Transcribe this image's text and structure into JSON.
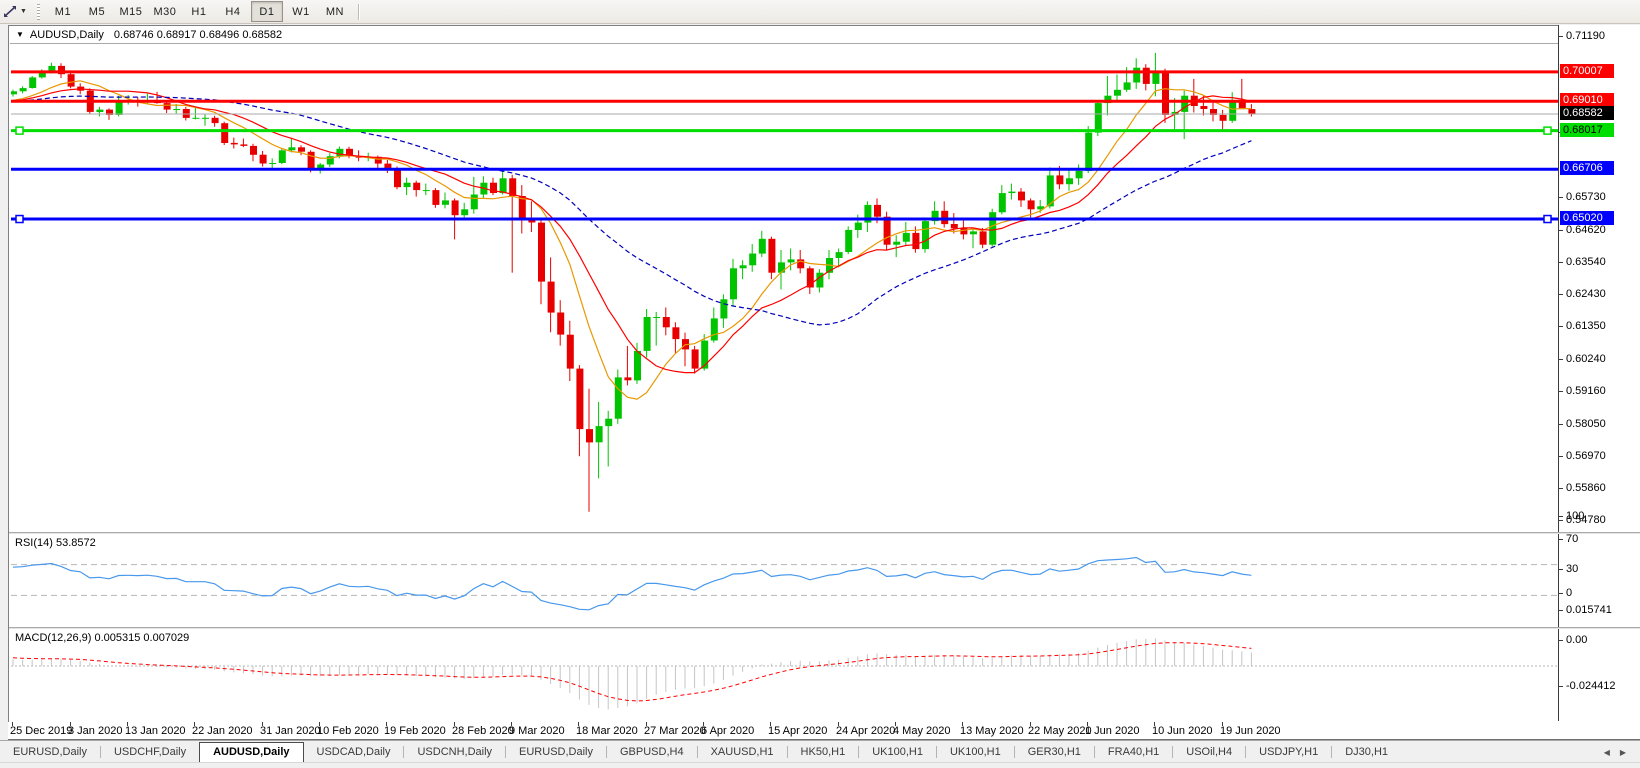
{
  "toolbar": {
    "timeframes": [
      "M1",
      "M5",
      "M15",
      "M30",
      "H1",
      "H4",
      "D1",
      "W1",
      "MN"
    ],
    "active_timeframe": "D1"
  },
  "chart": {
    "title": "AUDUSD,Daily",
    "ohlc": "0.68746 0.68917 0.68496 0.68582"
  },
  "price_axis": {
    "ticks": [
      0.7119,
      0.6792,
      0.6573,
      0.6462,
      0.6354,
      0.6243,
      0.6135,
      0.6024,
      0.5916,
      0.5805,
      0.5697,
      0.5586,
      0.5478
    ],
    "current_price": {
      "label": "0.68582",
      "value": 0.68582,
      "bg": "#000000",
      "fg": "#ffffff"
    }
  },
  "hlines": [
    {
      "label": "0.70007",
      "value": 0.70007,
      "color": "#ff0000",
      "text": "#ffffff",
      "selected": false
    },
    {
      "label": "0.69010",
      "value": 0.6901,
      "color": "#ff0000",
      "text": "#ffffff",
      "selected": false
    },
    {
      "label": "0.68017",
      "value": 0.68017,
      "color": "#00dd00",
      "text": "#000000",
      "selected": true
    },
    {
      "label": "0.66706",
      "value": 0.66706,
      "color": "#0000ff",
      "text": "#ffffff",
      "selected": false
    },
    {
      "label": "0.65020",
      "value": 0.6502,
      "color": "#0000ff",
      "text": "#ffffff",
      "selected": true
    }
  ],
  "current_price_line_color": "#aaaaaa",
  "chart_data": {
    "type": "candlestick",
    "symbol": "AUDUSD",
    "timeframe": "Daily",
    "up_color": "#00c400",
    "down_color": "#e80000",
    "x_ticks": [
      [
        "25 Dec 2019",
        0
      ],
      [
        "3 Jan 2020",
        6
      ],
      [
        "13 Jan 2020",
        12
      ],
      [
        "22 Jan 2020",
        19
      ],
      [
        "31 Jan 2020",
        26
      ],
      [
        "10 Feb 2020",
        32
      ],
      [
        "19 Feb 2020",
        39
      ],
      [
        "28 Feb 2020",
        46
      ],
      [
        "9 Mar 2020",
        52
      ],
      [
        "18 Mar 2020",
        59
      ],
      [
        "27 Mar 2020",
        66
      ],
      [
        "6 Apr 2020",
        72
      ],
      [
        "15 Apr 2020",
        79
      ],
      [
        "24 Apr 2020",
        86
      ],
      [
        "4 May 2020",
        92
      ],
      [
        "13 May 2020",
        99
      ],
      [
        "22 May 2020",
        106
      ],
      [
        "1 Jun 2020",
        112
      ],
      [
        "10 Jun 2020",
        119
      ],
      [
        "19 Jun 2020",
        126
      ]
    ],
    "candles": [
      [
        0.6925,
        0.694,
        0.6917,
        0.6935
      ],
      [
        0.6935,
        0.6952,
        0.6928,
        0.6946
      ],
      [
        0.6946,
        0.6987,
        0.6944,
        0.6982
      ],
      [
        0.6982,
        0.701,
        0.6978,
        0.7
      ],
      [
        0.7,
        0.7032,
        0.6995,
        0.7021
      ],
      [
        0.7021,
        0.703,
        0.698,
        0.6993
      ],
      [
        0.6993,
        0.7,
        0.6945,
        0.6951
      ],
      [
        0.6951,
        0.6962,
        0.6925,
        0.6937
      ],
      [
        0.6937,
        0.6945,
        0.6858,
        0.6865
      ],
      [
        0.6865,
        0.6882,
        0.685,
        0.6873
      ],
      [
        0.6873,
        0.6877,
        0.6838,
        0.6855
      ],
      [
        0.6855,
        0.692,
        0.685,
        0.69
      ],
      [
        0.69,
        0.6922,
        0.689,
        0.6903
      ],
      [
        0.6903,
        0.6915,
        0.6883,
        0.69
      ],
      [
        0.69,
        0.6927,
        0.6893,
        0.6905
      ],
      [
        0.6905,
        0.6933,
        0.6893,
        0.6895
      ],
      [
        0.6895,
        0.6905,
        0.6861,
        0.6873
      ],
      [
        0.6873,
        0.6892,
        0.686,
        0.6875
      ],
      [
        0.6875,
        0.6882,
        0.6836,
        0.6845
      ],
      [
        0.6845,
        0.688,
        0.684,
        0.6845
      ],
      [
        0.6845,
        0.6857,
        0.6818,
        0.6845
      ],
      [
        0.6845,
        0.6852,
        0.6815,
        0.6827
      ],
      [
        0.6827,
        0.6832,
        0.6753,
        0.676
      ],
      [
        0.676,
        0.6778,
        0.6741,
        0.6755
      ],
      [
        0.6755,
        0.6775,
        0.6746,
        0.675
      ],
      [
        0.675,
        0.6757,
        0.6698,
        0.672
      ],
      [
        0.672,
        0.6733,
        0.668,
        0.669
      ],
      [
        0.669,
        0.6708,
        0.6668,
        0.6692
      ],
      [
        0.6692,
        0.674,
        0.6688,
        0.6735
      ],
      [
        0.6735,
        0.6775,
        0.6728,
        0.6745
      ],
      [
        0.6745,
        0.6752,
        0.6718,
        0.673
      ],
      [
        0.673,
        0.6735,
        0.666,
        0.667
      ],
      [
        0.667,
        0.6692,
        0.6656,
        0.6687
      ],
      [
        0.6687,
        0.6725,
        0.6678,
        0.6715
      ],
      [
        0.6715,
        0.6748,
        0.6708,
        0.674
      ],
      [
        0.674,
        0.6747,
        0.6708,
        0.6715
      ],
      [
        0.6715,
        0.6735,
        0.6698,
        0.671
      ],
      [
        0.671,
        0.6727,
        0.6698,
        0.6713
      ],
      [
        0.6713,
        0.6717,
        0.6673,
        0.669
      ],
      [
        0.669,
        0.6702,
        0.6658,
        0.6675
      ],
      [
        0.6675,
        0.668,
        0.6603,
        0.661
      ],
      [
        0.661,
        0.6642,
        0.6583,
        0.6625
      ],
      [
        0.6625,
        0.6632,
        0.6578,
        0.66
      ],
      [
        0.66,
        0.6622,
        0.6583,
        0.66
      ],
      [
        0.66,
        0.6607,
        0.654,
        0.655
      ],
      [
        0.655,
        0.6592,
        0.6538,
        0.6565
      ],
      [
        0.6565,
        0.6572,
        0.6433,
        0.6515
      ],
      [
        0.6515,
        0.6557,
        0.6503,
        0.6535
      ],
      [
        0.6535,
        0.6645,
        0.652,
        0.6585
      ],
      [
        0.6585,
        0.6647,
        0.6573,
        0.6625
      ],
      [
        0.6625,
        0.6642,
        0.6583,
        0.659
      ],
      [
        0.659,
        0.6672,
        0.6585,
        0.664
      ],
      [
        0.664,
        0.6652,
        0.632,
        0.658
      ],
      [
        0.658,
        0.6617,
        0.6453,
        0.65
      ],
      [
        0.65,
        0.6562,
        0.6458,
        0.649
      ],
      [
        0.649,
        0.6497,
        0.6213,
        0.629
      ],
      [
        0.629,
        0.6372,
        0.6118,
        0.6185
      ],
      [
        0.6185,
        0.6227,
        0.6073,
        0.611
      ],
      [
        0.611,
        0.6157,
        0.5953,
        0.5995
      ],
      [
        0.5995,
        0.6007,
        0.5698,
        0.579
      ],
      [
        0.579,
        0.5927,
        0.551,
        0.5745
      ],
      [
        0.5745,
        0.5882,
        0.5623,
        0.58
      ],
      [
        0.58,
        0.5852,
        0.5663,
        0.5825
      ],
      [
        0.5825,
        0.5992,
        0.5808,
        0.5965
      ],
      [
        0.5965,
        0.6072,
        0.5938,
        0.5955
      ],
      [
        0.5955,
        0.6082,
        0.5943,
        0.6055
      ],
      [
        0.6055,
        0.6197,
        0.6033,
        0.617
      ],
      [
        0.617,
        0.6187,
        0.6073,
        0.617
      ],
      [
        0.617,
        0.6202,
        0.6108,
        0.6135
      ],
      [
        0.6135,
        0.6152,
        0.6048,
        0.6095
      ],
      [
        0.6095,
        0.6117,
        0.6003,
        0.606
      ],
      [
        0.606,
        0.6072,
        0.5978,
        0.5995
      ],
      [
        0.5995,
        0.6112,
        0.5988,
        0.609
      ],
      [
        0.609,
        0.6202,
        0.6083,
        0.6165
      ],
      [
        0.6165,
        0.6247,
        0.6133,
        0.623
      ],
      [
        0.623,
        0.6367,
        0.6208,
        0.6335
      ],
      [
        0.6335,
        0.6362,
        0.6298,
        0.6345
      ],
      [
        0.6345,
        0.6417,
        0.6323,
        0.6385
      ],
      [
        0.6385,
        0.6462,
        0.6373,
        0.6435
      ],
      [
        0.6435,
        0.6442,
        0.6298,
        0.632
      ],
      [
        0.632,
        0.6397,
        0.6263,
        0.6355
      ],
      [
        0.6355,
        0.6402,
        0.6328,
        0.6365
      ],
      [
        0.6365,
        0.6397,
        0.6318,
        0.6335
      ],
      [
        0.6335,
        0.6342,
        0.6248,
        0.627
      ],
      [
        0.627,
        0.6332,
        0.6253,
        0.632
      ],
      [
        0.632,
        0.6397,
        0.6298,
        0.637
      ],
      [
        0.637,
        0.6402,
        0.6338,
        0.639
      ],
      [
        0.639,
        0.6477,
        0.6383,
        0.6465
      ],
      [
        0.6465,
        0.6517,
        0.6438,
        0.649
      ],
      [
        0.649,
        0.6562,
        0.6458,
        0.655
      ],
      [
        0.655,
        0.6572,
        0.6488,
        0.651
      ],
      [
        0.651,
        0.6527,
        0.6398,
        0.6415
      ],
      [
        0.6415,
        0.6447,
        0.6373,
        0.6425
      ],
      [
        0.6425,
        0.6492,
        0.6413,
        0.6455
      ],
      [
        0.6455,
        0.6477,
        0.6388,
        0.64
      ],
      [
        0.64,
        0.6507,
        0.6388,
        0.6495
      ],
      [
        0.6495,
        0.6562,
        0.6483,
        0.653
      ],
      [
        0.653,
        0.6562,
        0.6473,
        0.6485
      ],
      [
        0.6485,
        0.6522,
        0.6453,
        0.647
      ],
      [
        0.647,
        0.6507,
        0.6433,
        0.645
      ],
      [
        0.645,
        0.6472,
        0.6403,
        0.646
      ],
      [
        0.646,
        0.6472,
        0.6403,
        0.6415
      ],
      [
        0.6415,
        0.6537,
        0.6408,
        0.6525
      ],
      [
        0.6525,
        0.6617,
        0.6518,
        0.659
      ],
      [
        0.659,
        0.6622,
        0.6568,
        0.6595
      ],
      [
        0.6595,
        0.6607,
        0.6543,
        0.6565
      ],
      [
        0.6565,
        0.6572,
        0.6508,
        0.6535
      ],
      [
        0.6535,
        0.6567,
        0.6523,
        0.6545
      ],
      [
        0.6545,
        0.6677,
        0.6538,
        0.665
      ],
      [
        0.665,
        0.6682,
        0.6603,
        0.662
      ],
      [
        0.662,
        0.6667,
        0.6598,
        0.664
      ],
      [
        0.664,
        0.6687,
        0.6618,
        0.6665
      ],
      [
        0.6665,
        0.6817,
        0.6658,
        0.6795
      ],
      [
        0.6795,
        0.6902,
        0.6783,
        0.6895
      ],
      [
        0.6895,
        0.6987,
        0.6853,
        0.692
      ],
      [
        0.692,
        0.6992,
        0.6898,
        0.694
      ],
      [
        0.694,
        0.7017,
        0.6933,
        0.6965
      ],
      [
        0.6965,
        0.7047,
        0.6943,
        0.7015
      ],
      [
        0.7015,
        0.7027,
        0.6938,
        0.696
      ],
      [
        0.696,
        0.7065,
        0.6918,
        0.7
      ],
      [
        0.7,
        0.7012,
        0.6828,
        0.6855
      ],
      [
        0.6855,
        0.6912,
        0.6798,
        0.6865
      ],
      [
        0.6865,
        0.6937,
        0.6773,
        0.692
      ],
      [
        0.692,
        0.6977,
        0.6863,
        0.6885
      ],
      [
        0.6885,
        0.6922,
        0.6853,
        0.6875
      ],
      [
        0.6875,
        0.6897,
        0.6833,
        0.6855
      ],
      [
        0.6855,
        0.6872,
        0.6803,
        0.6835
      ],
      [
        0.6835,
        0.6932,
        0.6828,
        0.6905
      ],
      [
        0.6905,
        0.6977,
        0.6888,
        0.68746
      ],
      [
        0.68746,
        0.68917,
        0.68496,
        0.68582
      ]
    ],
    "moving_averages": [
      {
        "period": 8,
        "color": "#e89800",
        "style": "solid"
      },
      {
        "period": 13,
        "color": "#ff0000",
        "style": "solid"
      },
      {
        "period": 30,
        "color": "#0000bb",
        "style": "dash"
      }
    ],
    "prepad_close": 0.69,
    "rsi": {
      "label": "RSI(14) 53.8572",
      "period": 14,
      "color": "#4898ec",
      "levels": [
        70,
        30
      ],
      "axis_labels": [
        100,
        70,
        30,
        0
      ],
      "seed_gain": 0.003,
      "seed_loss": 0.0015
    },
    "macd": {
      "label": "MACD(12,26,9) 0.005315 0.007029",
      "fast": 12,
      "slow": 26,
      "signal": 9,
      "histogram_color": "#c4c4c4",
      "signal_color": "#ff0000",
      "axis_labels": [
        "0.015741",
        "0.00",
        "-0.024412"
      ],
      "axis_values": [
        0.015741,
        0,
        -0.024412
      ]
    }
  },
  "tabs": {
    "items": [
      "EURUSD,Daily",
      "USDCHF,Daily",
      "AUDUSD,Daily",
      "USDCAD,Daily",
      "USDCNH,Daily",
      "EURUSD,Daily",
      "GBPUSD,H4",
      "XAUUSD,H1",
      "HK50,H1",
      "UK100,H1",
      "UK100,H1",
      "GER30,H1",
      "FRA40,H1",
      "USOil,H4",
      "USDJPY,H1",
      "DJ30,H1"
    ],
    "active_index": 2
  },
  "scroll_arrows": {
    "left": "◀",
    "right": "▶"
  }
}
